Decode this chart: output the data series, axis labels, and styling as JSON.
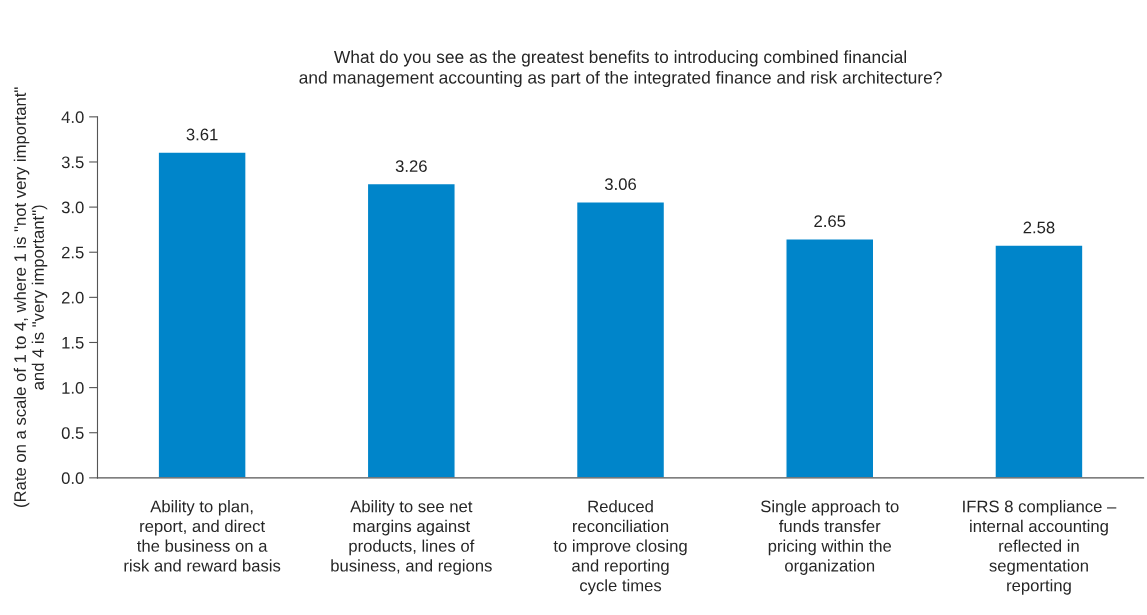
{
  "chart_data": {
    "type": "bar",
    "title": "What do you see as the greatest benefits to introducing combined financial\nand management accounting as part of the integrated finance and risk architecture?",
    "ylabel": "(Rate on a scale of 1 to 4, where 1 is \"not very important\"\nand 4 is \"very important\")",
    "categories": [
      "Ability to plan,\nreport, and direct\nthe business on a\nrisk and reward basis",
      "Ability to see net\nmargins against\nproducts, lines of\nbusiness, and regions",
      "Reduced\nreconciliation\nto improve closing\nand reporting\ncycle times",
      "Single approach to\nfunds transfer\npricing within the\norganization",
      "IFRS 8 compliance –\ninternal accounting\nreflected in\nsegmentation\nreporting"
    ],
    "values": [
      3.61,
      3.26,
      3.06,
      2.65,
      2.58
    ],
    "color": "#0085ca",
    "ylim": [
      0,
      4
    ],
    "yticks": [
      {
        "value": 0,
        "label": "0.0"
      },
      {
        "value": 0.5,
        "label": "0.5"
      },
      {
        "value": 1,
        "label": "1.0"
      },
      {
        "value": 1.5,
        "label": "1.5"
      },
      {
        "value": 2,
        "label": "2.0"
      },
      {
        "value": 2.5,
        "label": "2.5"
      },
      {
        "value": 3,
        "label": "3.0"
      },
      {
        "value": 3.5,
        "label": "3.5"
      },
      {
        "value": 4,
        "label": "4.0"
      }
    ],
    "data_labels": true,
    "grid": false,
    "legend": false
  }
}
